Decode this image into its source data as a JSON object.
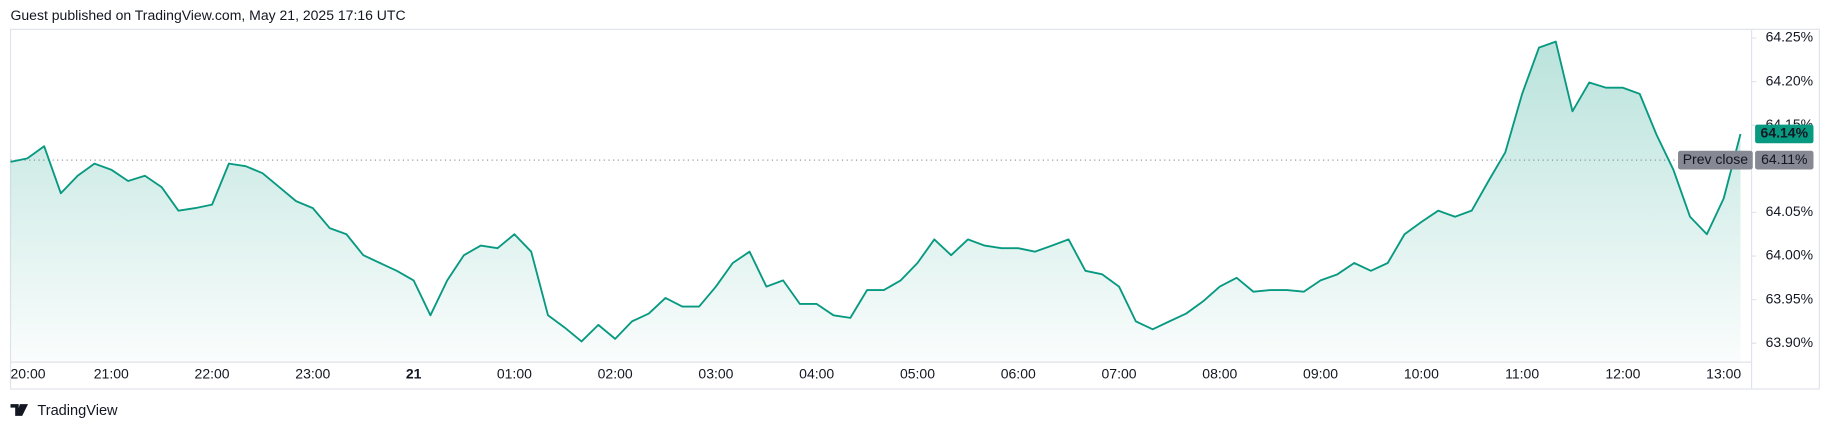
{
  "header": "Guest published on TradingView.com, May 21, 2025 17:16 UTC",
  "footer": "TradingView",
  "chart_data": {
    "type": "area",
    "categories": [
      "20:00",
      null,
      null,
      null,
      null,
      null,
      "21:00",
      null,
      null,
      null,
      null,
      null,
      "22:00",
      null,
      null,
      null,
      null,
      null,
      "23:00",
      null,
      null,
      null,
      null,
      null,
      "21",
      null,
      null,
      null,
      null,
      null,
      "01:00",
      null,
      null,
      null,
      null,
      null,
      "02:00",
      null,
      null,
      null,
      null,
      null,
      "03:00",
      null,
      null,
      null,
      null,
      null,
      "04:00",
      null,
      null,
      null,
      null,
      null,
      "05:00",
      null,
      null,
      null,
      null,
      null,
      "06:00",
      null,
      null,
      null,
      null,
      null,
      "07:00",
      null,
      null,
      null,
      null,
      null,
      "08:00",
      null,
      null,
      null,
      null,
      null,
      "09:00",
      null,
      null,
      null,
      null,
      null,
      "10:00",
      null,
      null,
      null,
      null,
      null,
      "11:00",
      null,
      null,
      null,
      null,
      null,
      "12:00",
      null,
      null,
      null,
      null,
      null,
      "13:00",
      null
    ],
    "series": [
      {
        "color": "#089981",
        "values": [
          64.108,
          64.112,
          64.126,
          64.072,
          64.092,
          64.106,
          64.099,
          64.086,
          64.092,
          64.079,
          64.052,
          64.055,
          64.059,
          64.106,
          64.103,
          64.095,
          64.079,
          64.063,
          64.055,
          64.032,
          64.025,
          64.001,
          63.992,
          63.983,
          63.972,
          63.932,
          63.972,
          64.001,
          64.012,
          64.009,
          64.025,
          64.005,
          63.932,
          63.918,
          63.902,
          63.921,
          63.905,
          63.925,
          63.934,
          63.952,
          63.942,
          63.942,
          63.965,
          63.992,
          64.005,
          63.965,
          63.972,
          63.945,
          63.945,
          63.932,
          63.929,
          63.961,
          63.961,
          63.972,
          63.992,
          64.019,
          64.001,
          64.019,
          64.012,
          64.009,
          64.009,
          64.005,
          64.012,
          64.019,
          63.983,
          63.979,
          63.965,
          63.925,
          63.916,
          63.925,
          63.934,
          63.948,
          63.965,
          63.975,
          63.959,
          63.961,
          63.961,
          63.959,
          63.972,
          63.979,
          63.992,
          63.983,
          63.992,
          64.025,
          64.039,
          64.052,
          64.045,
          64.052,
          64.086,
          64.119,
          64.186,
          64.239,
          64.246,
          64.166,
          64.199,
          64.193,
          64.193,
          64.186,
          64.139,
          64.099,
          64.045,
          64.025,
          64.066,
          64.14
        ]
      }
    ],
    "ylim": [
      63.885,
      64.26
    ],
    "yticks": [
      {
        "value": 63.9,
        "label": "63.90%"
      },
      {
        "value": 63.95,
        "label": "63.95%"
      },
      {
        "value": 64.0,
        "label": "64.00%"
      },
      {
        "value": 64.05,
        "label": "64.05%"
      },
      {
        "value": 64.15,
        "label": "64.15%"
      },
      {
        "value": 64.2,
        "label": "64.20%"
      },
      {
        "value": 64.25,
        "label": "64.25%"
      }
    ],
    "prev_close": {
      "name": "Prev close",
      "value": 64.11,
      "label": "64.11%"
    },
    "last_price": {
      "value": 64.14,
      "label": "64.14%"
    }
  }
}
